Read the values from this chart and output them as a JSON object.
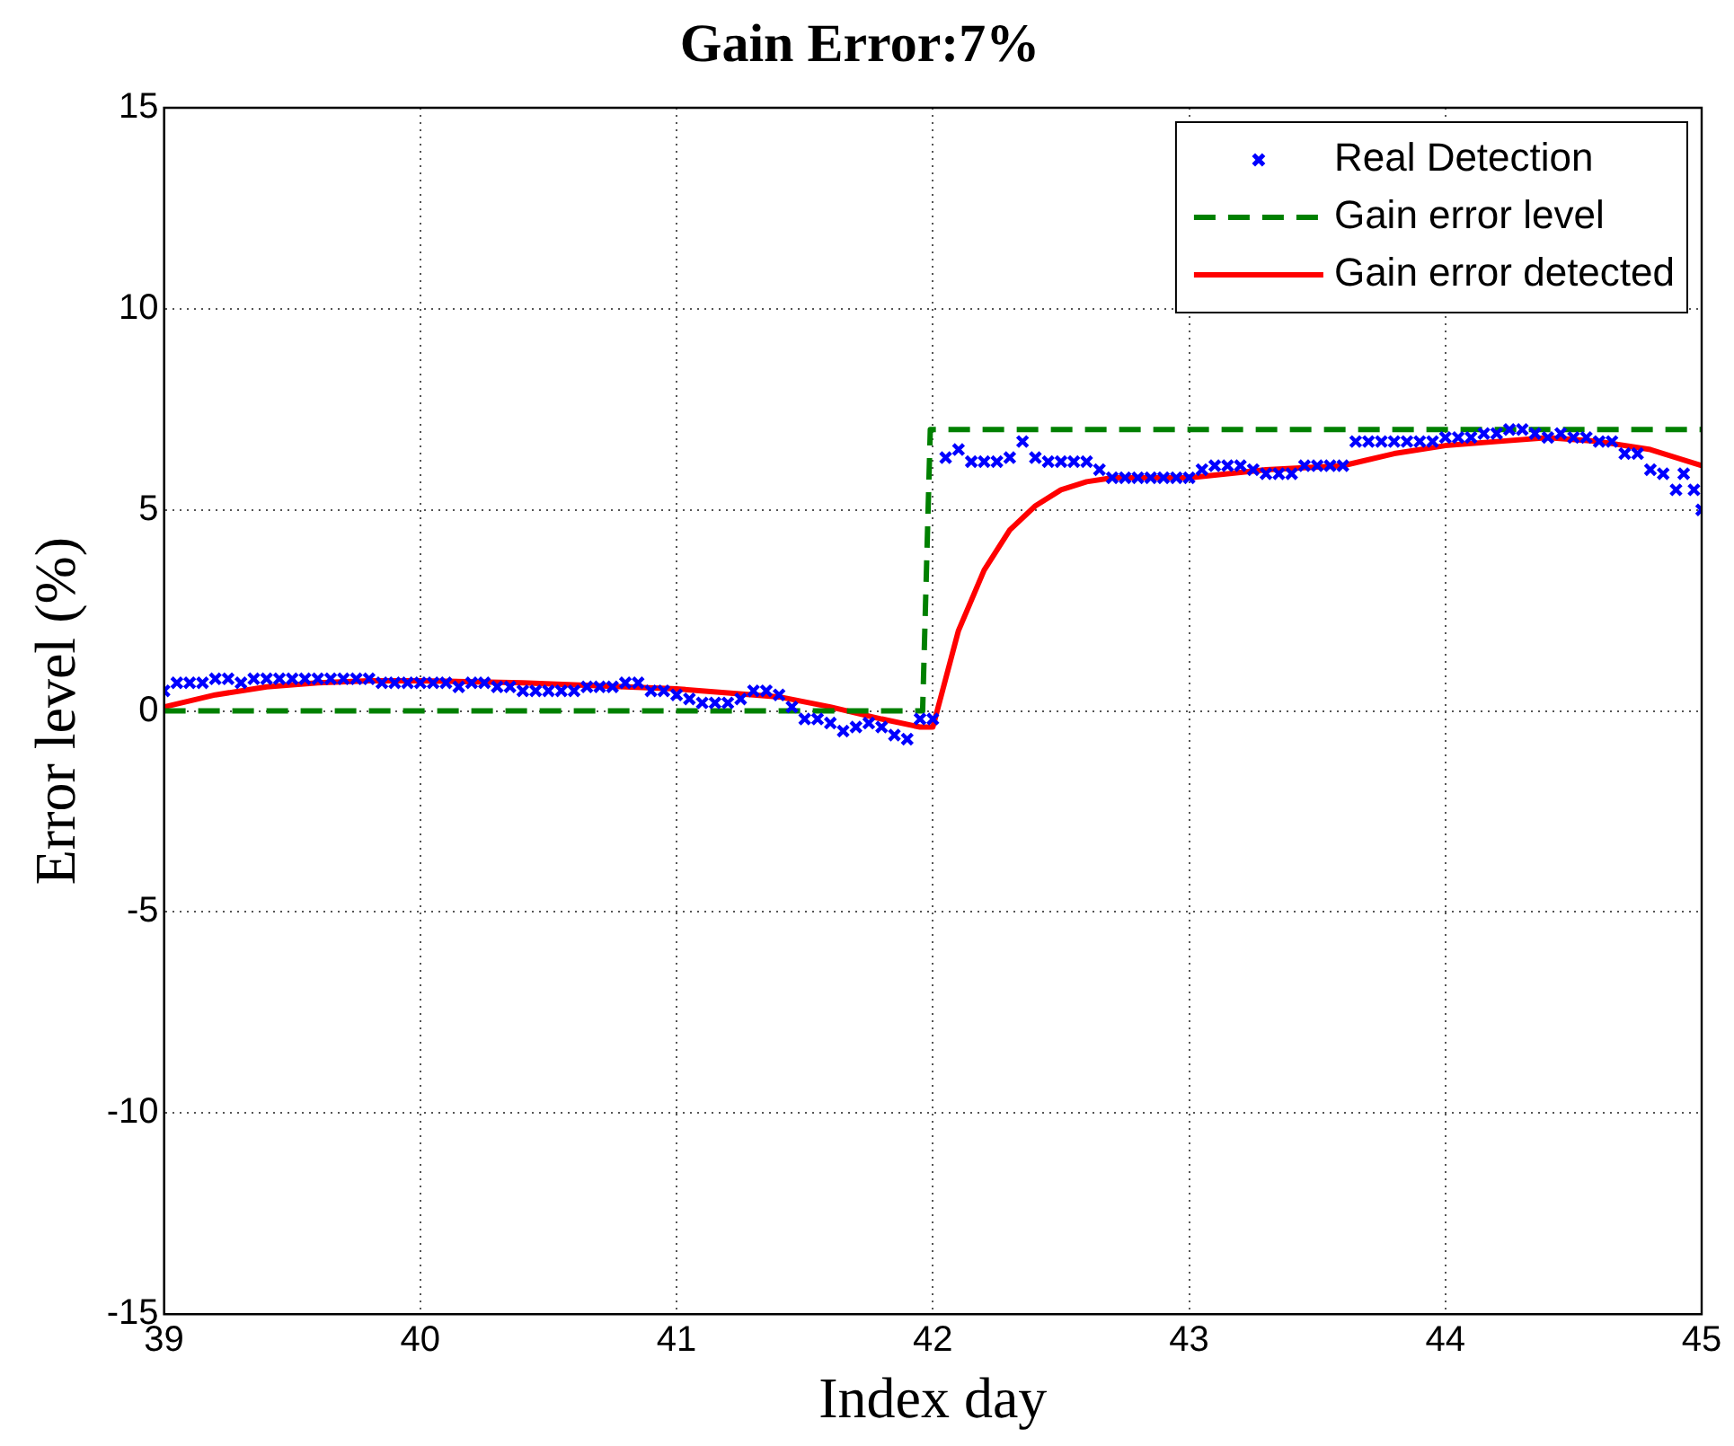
{
  "chart_data": {
    "type": "line",
    "title": "Gain Error:7%",
    "xlabel": "Index day",
    "ylabel": "Error level (%)",
    "xlim": [
      39,
      45
    ],
    "xticks": [
      39,
      40,
      41,
      42,
      43,
      44,
      45
    ],
    "ylim": [
      -15,
      15
    ],
    "yticks": [
      -15,
      -10,
      -5,
      0,
      5,
      10,
      15
    ],
    "grid": true,
    "legend": "top right",
    "series": [
      {
        "name": "Real Detection",
        "type": "scatter",
        "marker": "cross",
        "color": "#0000ff",
        "x": [
          39.0,
          39.05,
          39.1,
          39.15,
          39.2,
          39.25,
          39.3,
          39.35,
          39.4,
          39.45,
          39.5,
          39.55,
          39.6,
          39.65,
          39.7,
          39.75,
          39.8,
          39.85,
          39.9,
          39.95,
          40.0,
          40.05,
          40.1,
          40.15,
          40.2,
          40.25,
          40.3,
          40.35,
          40.4,
          40.45,
          40.5,
          40.55,
          40.6,
          40.65,
          40.7,
          40.75,
          40.8,
          40.85,
          40.9,
          40.95,
          41.0,
          41.05,
          41.1,
          41.15,
          41.2,
          41.25,
          41.3,
          41.35,
          41.4,
          41.45,
          41.5,
          41.55,
          41.6,
          41.65,
          41.7,
          41.75,
          41.8,
          41.85,
          41.9,
          41.95,
          42.0,
          42.05,
          42.1,
          42.15,
          42.2,
          42.25,
          42.3,
          42.35,
          42.4,
          42.45,
          42.5,
          42.55,
          42.6,
          42.65,
          42.7,
          42.75,
          42.8,
          42.85,
          42.9,
          42.95,
          43.0,
          43.05,
          43.1,
          43.15,
          43.2,
          43.25,
          43.3,
          43.35,
          43.4,
          43.45,
          43.5,
          43.55,
          43.6,
          43.65,
          43.7,
          43.75,
          43.8,
          43.85,
          43.9,
          43.95,
          44.0,
          44.05,
          44.1,
          44.15,
          44.2,
          44.25,
          44.3,
          44.35,
          44.4,
          44.45,
          44.5,
          44.55,
          44.6,
          44.65,
          44.7,
          44.75,
          44.8,
          44.85,
          44.9,
          44.93,
          44.97,
          45.0
        ],
        "values": [
          0.5,
          0.7,
          0.7,
          0.7,
          0.8,
          0.8,
          0.7,
          0.8,
          0.8,
          0.8,
          0.8,
          0.8,
          0.8,
          0.8,
          0.8,
          0.8,
          0.8,
          0.7,
          0.7,
          0.7,
          0.7,
          0.7,
          0.7,
          0.6,
          0.7,
          0.7,
          0.6,
          0.6,
          0.5,
          0.5,
          0.5,
          0.5,
          0.5,
          0.6,
          0.6,
          0.6,
          0.7,
          0.7,
          0.5,
          0.5,
          0.4,
          0.3,
          0.2,
          0.2,
          0.2,
          0.3,
          0.5,
          0.5,
          0.4,
          0.1,
          -0.2,
          -0.2,
          -0.3,
          -0.5,
          -0.4,
          -0.3,
          -0.4,
          -0.6,
          -0.7,
          -0.2,
          -0.2,
          6.3,
          6.5,
          6.2,
          6.2,
          6.2,
          6.3,
          6.7,
          6.3,
          6.2,
          6.2,
          6.2,
          6.2,
          6.0,
          5.8,
          5.8,
          5.8,
          5.8,
          5.8,
          5.8,
          5.8,
          6.0,
          6.1,
          6.1,
          6.1,
          6.0,
          5.9,
          5.9,
          5.9,
          6.1,
          6.1,
          6.1,
          6.1,
          6.7,
          6.7,
          6.7,
          6.7,
          6.7,
          6.7,
          6.7,
          6.8,
          6.8,
          6.8,
          6.9,
          6.9,
          7.0,
          7.0,
          6.9,
          6.8,
          6.9,
          6.8,
          6.8,
          6.7,
          6.7,
          6.4,
          6.4,
          6.0,
          5.9,
          5.5,
          5.9,
          5.5,
          5.0
        ]
      },
      {
        "name": "Gain error level",
        "line_style": "dashed",
        "color": "#008000",
        "x": [
          39,
          41.96,
          41.99,
          45
        ],
        "values": [
          0,
          0,
          7,
          7
        ]
      },
      {
        "name": "Gain error detected",
        "line_style": "solid",
        "color": "#ff0000",
        "x": [
          39,
          39.2,
          39.4,
          39.6,
          39.8,
          40.0,
          40.4,
          40.8,
          41.0,
          41.2,
          41.4,
          41.6,
          41.8,
          41.95,
          42.0,
          42.05,
          42.1,
          42.2,
          42.3,
          42.4,
          42.5,
          42.6,
          42.7,
          43.0,
          43.3,
          43.6,
          43.8,
          44.0,
          44.2,
          44.4,
          44.6,
          44.8,
          45.0
        ],
        "values": [
          0.1,
          0.4,
          0.6,
          0.7,
          0.75,
          0.75,
          0.7,
          0.6,
          0.55,
          0.45,
          0.35,
          0.1,
          -0.2,
          -0.4,
          -0.4,
          0.8,
          2.0,
          3.5,
          4.5,
          5.1,
          5.5,
          5.7,
          5.8,
          5.8,
          6.0,
          6.1,
          6.4,
          6.6,
          6.7,
          6.8,
          6.7,
          6.5,
          6.1
        ]
      }
    ]
  }
}
